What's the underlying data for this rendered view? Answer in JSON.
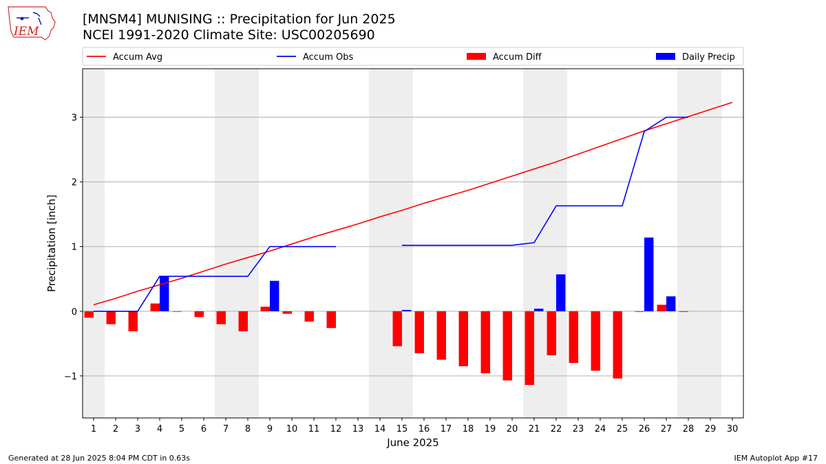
{
  "header": {
    "title": "[MNSM4] MUNISING :: Precipitation for Jun 2025",
    "subtitle": "NCEI 1991-2020 Climate Site: USC00205690",
    "logo_text": "IEM"
  },
  "footer": {
    "left": "Generated at 28 Jun 2025 8:04 PM CDT in 0.63s",
    "right": "IEM Autoplot App #17"
  },
  "colors": {
    "accum_avg": "#ff0000",
    "accum_obs": "#0000ff",
    "accum_diff": "#ff0000",
    "daily_precip": "#0000ff",
    "weekend_band": "#eeeeee",
    "grid": "#b0b0b0"
  },
  "chart_data": {
    "type": "bar",
    "xlabel": "June 2025",
    "ylabel": "Precipitation [inch]",
    "xlim": [
      0.5,
      30.5
    ],
    "ylim": [
      -1.65,
      3.75
    ],
    "yticks": [
      -1,
      0,
      1,
      2,
      3
    ],
    "ytick_labels": [
      "−1",
      "0",
      "1",
      "2",
      "3"
    ],
    "categories": [
      "1",
      "2",
      "3",
      "4",
      "5",
      "6",
      "7",
      "8",
      "9",
      "10",
      "11",
      "12",
      "13",
      "14",
      "15",
      "16",
      "17",
      "18",
      "19",
      "20",
      "21",
      "22",
      "23",
      "24",
      "25",
      "26",
      "27",
      "28",
      "29",
      "30"
    ],
    "weekend_days": [
      1,
      7,
      8,
      14,
      15,
      21,
      22,
      28,
      29
    ],
    "grid": true,
    "legend": {
      "placement": "top",
      "entries": [
        {
          "label": "Accum Avg",
          "kind": "line",
          "color": "#ff0000"
        },
        {
          "label": "Accum Obs",
          "kind": "line",
          "color": "#0000ff"
        },
        {
          "label": "Accum Diff",
          "kind": "bar",
          "color": "#ff0000"
        },
        {
          "label": "Daily Precip",
          "kind": "bar",
          "color": "#0000ff"
        }
      ]
    },
    "series": [
      {
        "name": "Accum Avg",
        "kind": "line",
        "values": [
          0.1,
          0.2,
          0.31,
          0.41,
          0.51,
          0.62,
          0.73,
          0.83,
          0.93,
          1.04,
          1.15,
          1.25,
          1.35,
          1.46,
          1.56,
          1.67,
          1.77,
          1.87,
          1.98,
          2.09,
          2.2,
          2.31,
          2.43,
          2.55,
          2.67,
          2.79,
          2.9,
          3.01,
          3.12,
          3.23
        ]
      },
      {
        "name": "Accum Obs",
        "kind": "line",
        "values": [
          0.0,
          0.0,
          0.0,
          0.54,
          0.54,
          0.54,
          0.54,
          0.54,
          1.0,
          1.0,
          1.0,
          1.0,
          null,
          null,
          1.02,
          1.02,
          1.02,
          1.02,
          1.02,
          1.02,
          1.06,
          1.63,
          1.63,
          1.63,
          1.63,
          2.78,
          3.0,
          3.0,
          null,
          null
        ]
      },
      {
        "name": "Accum Diff",
        "kind": "bar",
        "values": [
          -0.1,
          -0.2,
          -0.31,
          0.12,
          0.0,
          -0.09,
          -0.2,
          -0.31,
          0.07,
          -0.04,
          -0.16,
          -0.26,
          null,
          null,
          -0.54,
          -0.65,
          -0.75,
          -0.85,
          -0.96,
          -1.07,
          -1.14,
          -0.68,
          -0.8,
          -0.92,
          -1.04,
          -0.01,
          0.1,
          -0.01,
          null,
          null
        ]
      },
      {
        "name": "Daily Precip",
        "kind": "bar",
        "values": [
          0.0,
          0.0,
          0.0,
          0.54,
          0.0,
          0.0,
          0.0,
          0.0,
          0.47,
          0.0,
          0.0,
          0.0,
          null,
          null,
          0.02,
          0.0,
          0.0,
          0.0,
          0.0,
          0.0,
          0.04,
          0.57,
          0.0,
          0.0,
          0.0,
          1.14,
          0.23,
          0.0,
          null,
          null
        ]
      }
    ]
  }
}
